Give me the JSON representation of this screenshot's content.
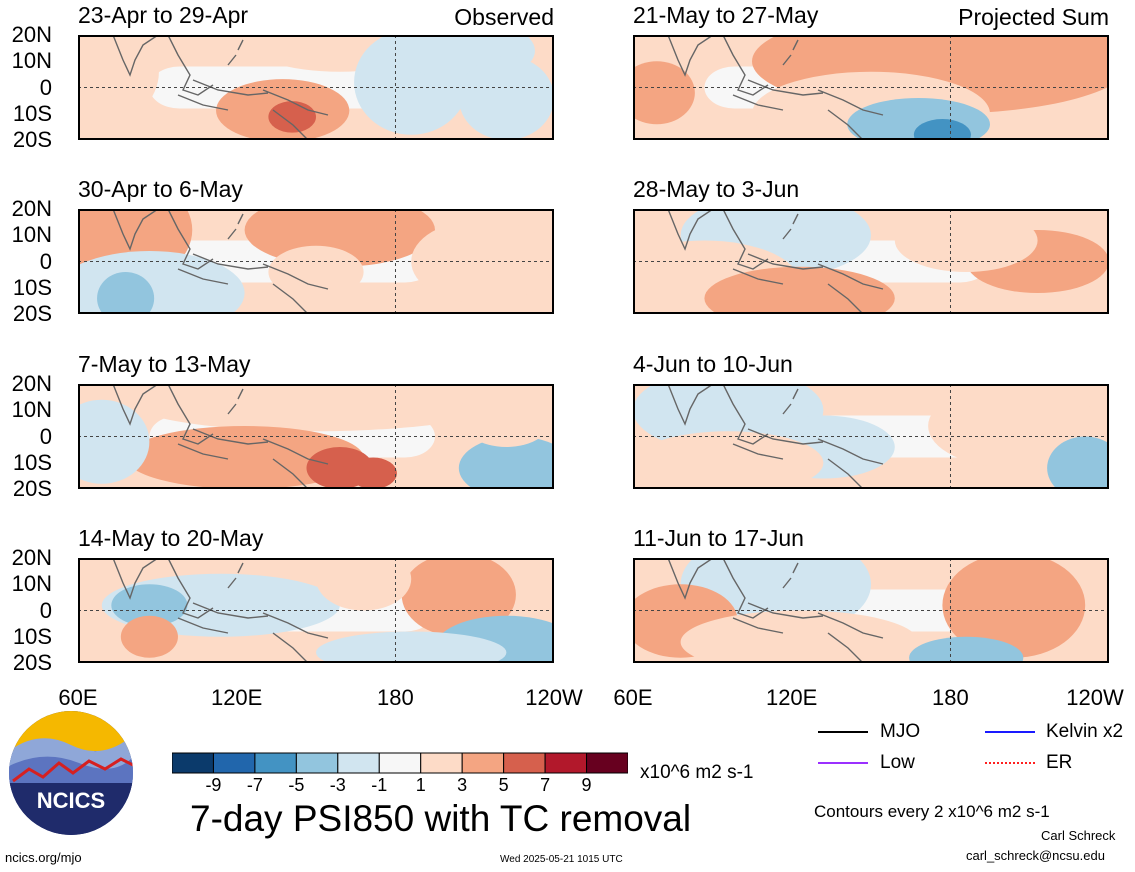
{
  "panels": [
    {
      "title": "23-Apr to 29-Apr",
      "tag": "Observed"
    },
    {
      "title": "30-Apr to 6-May",
      "tag": ""
    },
    {
      "title": "7-May to 13-May",
      "tag": ""
    },
    {
      "title": "14-May to 20-May",
      "tag": ""
    },
    {
      "title": "21-May to 27-May",
      "tag": "Projected Sum"
    },
    {
      "title": "28-May to 3-Jun",
      "tag": ""
    },
    {
      "title": "4-Jun to 10-Jun",
      "tag": ""
    },
    {
      "title": "11-Jun to 17-Jun",
      "tag": ""
    }
  ],
  "lat_labels": [
    "20N",
    "10N",
    "0",
    "10S",
    "20S"
  ],
  "lon_labels": [
    "60E",
    "120E",
    "180",
    "120W"
  ],
  "colorbar": {
    "colors": [
      "#0b3a6b",
      "#2166ac",
      "#4393c3",
      "#92c5de",
      "#d1e5f0",
      "#f7f7f7",
      "#fddbc7",
      "#f4a582",
      "#d6604d",
      "#b2182b",
      "#67001f"
    ],
    "labels": [
      "-9",
      "-7",
      "-5",
      "-3",
      "-1",
      "1",
      "3",
      "5",
      "7",
      "9"
    ],
    "units": "x10^6 m2 s-1"
  },
  "title": "7-day PSI850 with TC removal",
  "legend": {
    "items": [
      {
        "label": "MJO",
        "color": "#000000"
      },
      {
        "label": "Kelvin x2",
        "color": "#1a1aff"
      },
      {
        "label": "Low",
        "color": "#9b30ff"
      },
      {
        "label": "ER",
        "color": "#ff2020"
      }
    ],
    "contour_note": "Contours every 2 x10^6 m2 s-1"
  },
  "credits": {
    "author": "Carl Schreck",
    "email": "carl_schreck@ncsu.edu",
    "url": "ncics.org/mjo",
    "timestamp": "Wed 2025-05-21 1015 UTC",
    "logo_text": "NCICS"
  },
  "chart_data": {
    "type": "heatmap",
    "variable": "7-day PSI850 with TC removal",
    "units": "x10^6 m2 s-1",
    "x_range": [
      "60E",
      "120W"
    ],
    "y_range": [
      "20S",
      "20N"
    ],
    "xticks": [
      "60E",
      "120E",
      "180",
      "120W"
    ],
    "yticks": [
      "20N",
      "10N",
      "0",
      "10S",
      "20S"
    ],
    "levels": [
      -9,
      -7,
      -5,
      -3,
      -1,
      1,
      3,
      5,
      7,
      9
    ],
    "panels": [
      "23-Apr to 29-Apr",
      "30-Apr to 6-May",
      "7-May to 13-May",
      "14-May to 20-May",
      "21-May to 27-May",
      "28-May to 3-Jun",
      "4-Jun to 10-Jun",
      "11-Jun to 17-Jun"
    ]
  }
}
